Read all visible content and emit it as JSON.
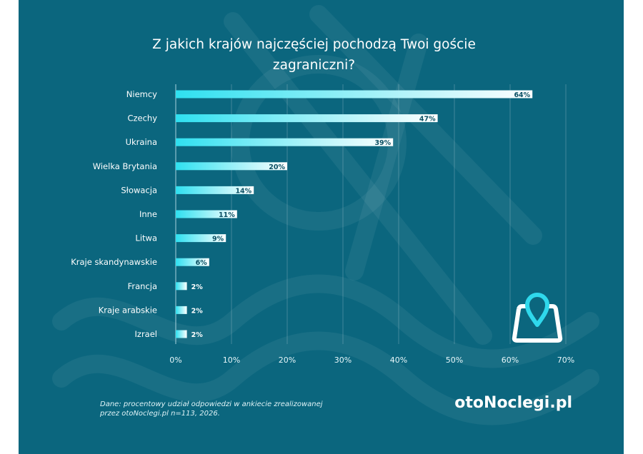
{
  "chart_data": {
    "type": "bar",
    "orientation": "horizontal",
    "title": "Z jakich krajów najczęściej pochodzą Twoi goście zagraniczni?",
    "title_lines": [
      "Z jakich krajów najczęściej pochodzą Twoi goście",
      "zagraniczni?"
    ],
    "categories": [
      "Niemcy",
      "Czechy",
      "Ukraina",
      "Wielka Brytania",
      "Słowacja",
      "Inne",
      "Litwa",
      "Kraje skandynawskie",
      "Francja",
      "Kraje arabskie",
      "Izrael"
    ],
    "values": [
      64,
      47,
      39,
      20,
      14,
      11,
      9,
      6,
      2,
      2,
      2
    ],
    "data_labels": [
      "64%",
      "47%",
      "39%",
      "20%",
      "14%",
      "11%",
      "9%",
      "6%",
      "2%",
      "2%",
      "2%"
    ],
    "xlim": [
      0,
      70
    ],
    "xticks": [
      "0%",
      "10%",
      "20%",
      "30%",
      "40%",
      "50%",
      "60%",
      "70%"
    ],
    "grid": true,
    "xlabel": "",
    "ylabel": ""
  },
  "footer": {
    "note_lines": [
      "Dane: procentowy udział odpowiedzi w ankiecie zrealizowanej",
      "przez otoNoclegi.pl n=113, 2026."
    ],
    "logo": "otoNoclegi.pl"
  },
  "colors": {
    "background": "#0b667e",
    "bar_start": "#2fe0f0",
    "bar_end": "#ffffff",
    "label_dark": "#0b4f63",
    "icon": "#2fd8ec"
  }
}
